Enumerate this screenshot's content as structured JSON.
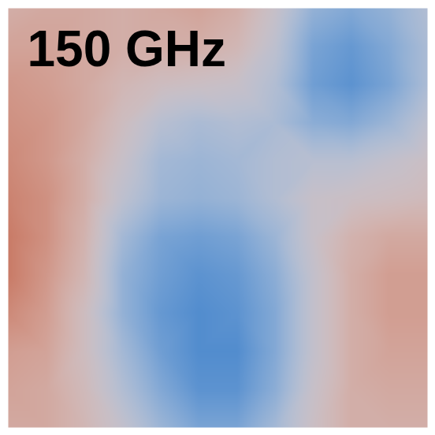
{
  "chart_data": {
    "type": "heatmap",
    "title": "150 GHz",
    "tick_labels": false,
    "zlim": [
      -1,
      1
    ],
    "cells": [
      [
        0.3,
        0.35,
        0.35,
        0.3,
        0.35,
        0.4,
        0.3,
        0.0,
        -0.4,
        -0.5,
        -0.4,
        -0.2
      ],
      [
        0.4,
        0.4,
        0.35,
        0.3,
        0.3,
        0.3,
        0.2,
        -0.1,
        -0.55,
        -0.65,
        -0.5,
        -0.25
      ],
      [
        0.5,
        0.45,
        0.35,
        0.2,
        0.1,
        0.05,
        0.0,
        -0.2,
        -0.6,
        -0.7,
        -0.55,
        -0.25
      ],
      [
        0.55,
        0.5,
        0.35,
        0.1,
        -0.15,
        -0.25,
        -0.2,
        -0.25,
        -0.45,
        -0.5,
        -0.35,
        -0.1
      ],
      [
        0.6,
        0.5,
        0.3,
        0.0,
        -0.3,
        -0.35,
        -0.3,
        -0.2,
        -0.15,
        -0.15,
        -0.05,
        0.05
      ],
      [
        0.65,
        0.55,
        0.3,
        -0.1,
        -0.35,
        -0.4,
        -0.35,
        -0.2,
        0.0,
        0.05,
        0.1,
        0.15
      ],
      [
        0.7,
        0.55,
        0.25,
        -0.3,
        -0.55,
        -0.6,
        -0.55,
        -0.35,
        0.0,
        0.25,
        0.35,
        0.35
      ],
      [
        0.7,
        0.5,
        0.2,
        -0.4,
        -0.6,
        -0.7,
        -0.65,
        -0.45,
        -0.05,
        0.3,
        0.45,
        0.45
      ],
      [
        0.6,
        0.45,
        0.1,
        -0.4,
        -0.65,
        -0.75,
        -0.7,
        -0.5,
        -0.05,
        0.3,
        0.45,
        0.45
      ],
      [
        0.45,
        0.4,
        0.1,
        -0.3,
        -0.6,
        -0.75,
        -0.75,
        -0.5,
        -0.05,
        0.3,
        0.4,
        0.4
      ],
      [
        0.4,
        0.35,
        0.15,
        -0.2,
        -0.5,
        -0.7,
        -0.7,
        -0.45,
        0.0,
        0.3,
        0.35,
        0.35
      ],
      [
        0.35,
        0.35,
        0.2,
        -0.05,
        -0.35,
        -0.55,
        -0.55,
        -0.3,
        0.05,
        0.3,
        0.3,
        0.3
      ]
    ]
  }
}
